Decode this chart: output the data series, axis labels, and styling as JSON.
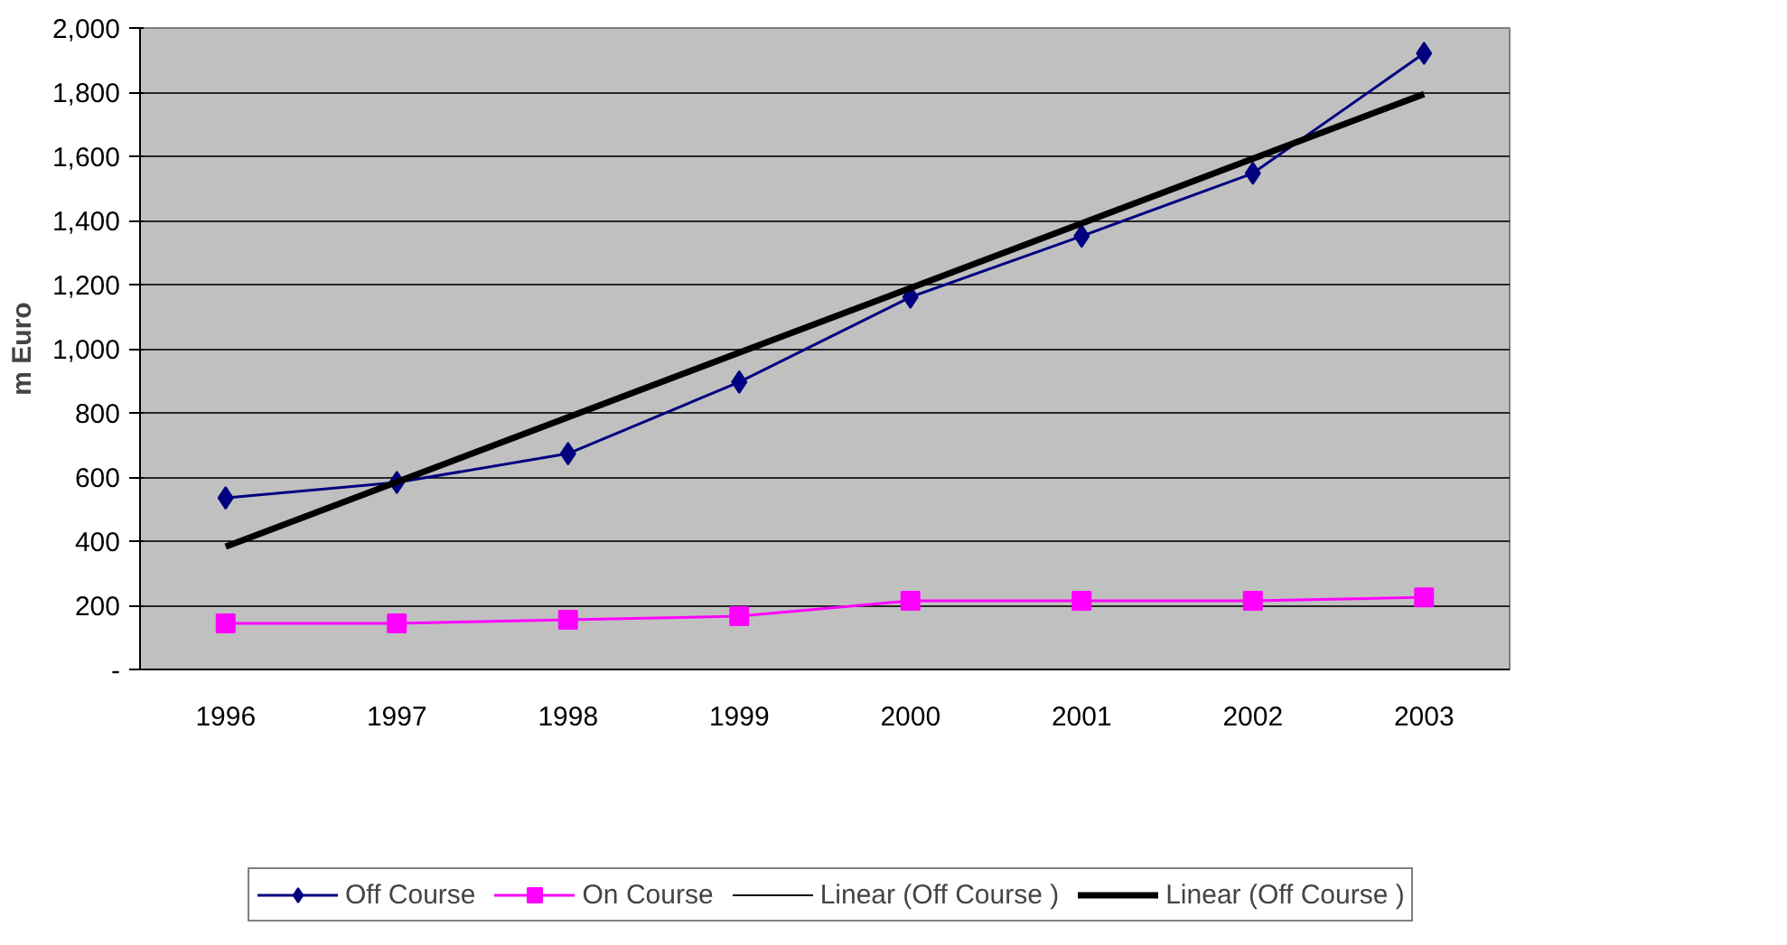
{
  "chart_data": {
    "type": "line",
    "ylabel": "m Euro",
    "categories": [
      "1996",
      "1997",
      "1998",
      "1999",
      "2000",
      "2001",
      "2002",
      "2003"
    ],
    "series": [
      {
        "name": "Off Course",
        "color": "#000080",
        "marker": "diamond",
        "values": [
          535,
          583,
          673,
          896,
          1161,
          1351,
          1547,
          1921
        ]
      },
      {
        "name": "On Course",
        "color": "#ff00ff",
        "marker": "square",
        "values": [
          144,
          144,
          155,
          166,
          214,
          214,
          214,
          225
        ]
      },
      {
        "name": "Linear (Off Course )",
        "color": "#000000",
        "marker": "none",
        "values": [
          null,
          null,
          null,
          null,
          null,
          null,
          null,
          null
        ]
      },
      {
        "name": "Linear (Off Course )",
        "color": "#000000",
        "marker": "none",
        "values": [
          383,
          null,
          null,
          null,
          null,
          null,
          null,
          1794
        ]
      }
    ],
    "ylim": [
      0,
      2000
    ],
    "yticks": [
      {
        "value": 0,
        "label": "-"
      },
      {
        "value": 200,
        "label": "200"
      },
      {
        "value": 400,
        "label": "400"
      },
      {
        "value": 600,
        "label": "600"
      },
      {
        "value": 800,
        "label": "800"
      },
      {
        "value": 1000,
        "label": "1,000"
      },
      {
        "value": 1200,
        "label": "1,200"
      },
      {
        "value": 1400,
        "label": "1,400"
      },
      {
        "value": 1600,
        "label": "1,600"
      },
      {
        "value": 1800,
        "label": "1,800"
      },
      {
        "value": 2000,
        "label": "2,000"
      }
    ],
    "grid": "y",
    "legend": "bottom",
    "line_style": "solid"
  }
}
